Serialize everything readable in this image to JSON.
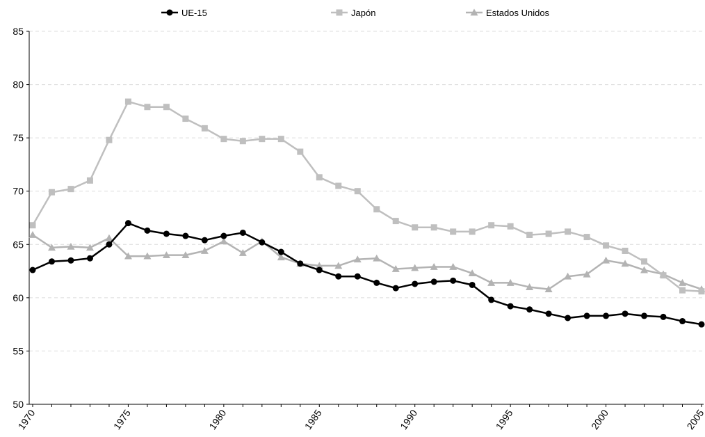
{
  "chart_data": {
    "type": "line",
    "x": [
      1970,
      1971,
      1972,
      1973,
      1974,
      1975,
      1976,
      1977,
      1978,
      1979,
      1980,
      1981,
      1982,
      1983,
      1984,
      1985,
      1986,
      1987,
      1988,
      1989,
      1990,
      1991,
      1992,
      1993,
      1994,
      1995,
      1996,
      1997,
      1998,
      1999,
      2000,
      2001,
      2002,
      2003,
      2004,
      2005
    ],
    "xticks": [
      "1970",
      "1975",
      "1980",
      "1985",
      "1990",
      "1995",
      "2000",
      "2005"
    ],
    "xlim": [
      1970,
      2005
    ],
    "ylim": [
      50,
      85
    ],
    "yticks": [
      "50",
      "55",
      "60",
      "65",
      "70",
      "75",
      "80",
      "85"
    ],
    "grid": "horizontal-dashed",
    "legend": "top",
    "series": [
      {
        "name": "UE-15",
        "color": "#000000",
        "marker": "circle",
        "values": [
          62.6,
          63.4,
          63.5,
          63.7,
          65.0,
          67.0,
          66.3,
          66.0,
          65.8,
          65.4,
          65.8,
          66.1,
          65.2,
          64.3,
          63.2,
          62.6,
          62.0,
          62.0,
          61.4,
          60.9,
          61.3,
          61.5,
          61.6,
          61.2,
          59.8,
          59.2,
          58.9,
          58.5,
          58.1,
          58.3,
          58.3,
          58.5,
          58.3,
          58.2,
          57.8,
          57.5
        ]
      },
      {
        "name": "Japón",
        "color": "#bfbfbf",
        "marker": "square",
        "values": [
          66.8,
          69.9,
          70.2,
          71.0,
          74.8,
          78.4,
          77.9,
          77.9,
          76.8,
          75.9,
          74.9,
          74.7,
          74.9,
          74.9,
          73.7,
          71.3,
          70.5,
          70.0,
          68.3,
          67.2,
          66.6,
          66.6,
          66.2,
          66.2,
          66.8,
          66.7,
          65.9,
          66.0,
          66.2,
          65.7,
          64.9,
          64.4,
          63.4,
          62.1,
          60.7,
          60.6
        ]
      },
      {
        "name": "Estados Unidos",
        "color": "#b3b3b3",
        "marker": "triangle",
        "values": [
          65.9,
          64.7,
          64.8,
          64.7,
          65.6,
          63.9,
          63.9,
          64.0,
          64.0,
          64.4,
          65.3,
          64.2,
          65.3,
          63.8,
          63.2,
          63.0,
          63.0,
          63.6,
          63.7,
          62.7,
          62.8,
          62.9,
          62.9,
          62.3,
          61.4,
          61.4,
          61.0,
          60.8,
          62.0,
          62.2,
          63.5,
          63.2,
          62.6,
          62.2,
          61.4,
          60.8
        ]
      }
    ]
  }
}
